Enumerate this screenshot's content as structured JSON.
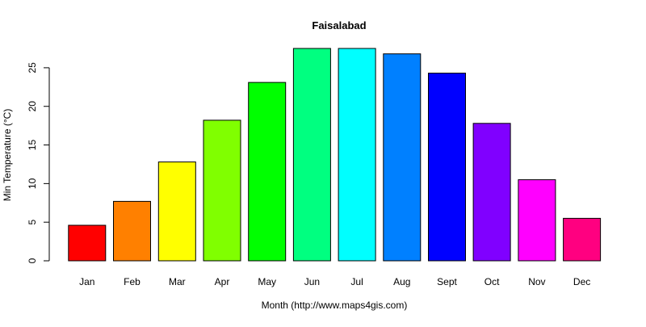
{
  "chart_data": {
    "type": "bar",
    "title": "Faisalabad",
    "xlabel": "Month (http://www.maps4gis.com)",
    "ylabel": "Min Temperature (°C)",
    "categories": [
      "Jan",
      "Feb",
      "Mar",
      "Apr",
      "May",
      "Jun",
      "Jul",
      "Aug",
      "Sept",
      "Oct",
      "Nov",
      "Dec"
    ],
    "values": [
      4.6,
      7.7,
      12.8,
      18.2,
      23.1,
      27.5,
      27.5,
      26.8,
      24.3,
      17.8,
      10.5,
      5.5
    ],
    "colors": [
      "#FF0000",
      "#FF8000",
      "#FFFF00",
      "#80FF00",
      "#00FF00",
      "#00FF80",
      "#00FFFF",
      "#0080FF",
      "#0000FF",
      "#8000FF",
      "#FF00FF",
      "#FF0080"
    ],
    "yticks": [
      0,
      5,
      10,
      15,
      20,
      25
    ],
    "ylim": [
      0,
      27.5
    ],
    "grid": false,
    "legend": "none"
  }
}
